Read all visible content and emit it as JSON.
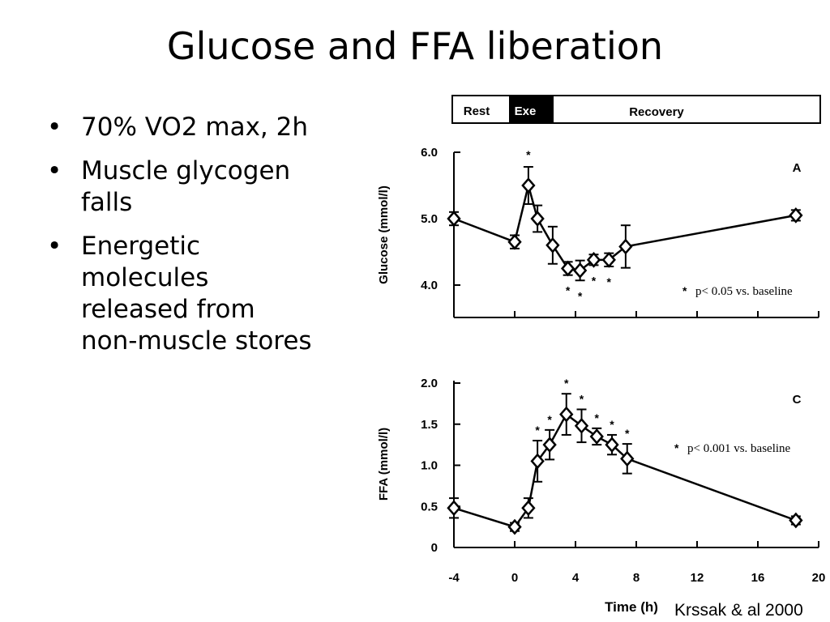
{
  "slide": {
    "title": "Glucose and FFA liberation",
    "bullets": [
      "70% VO2 max, 2h",
      "Muscle glycogen falls",
      "Energetic molecules released from non-muscle stores"
    ],
    "bullet_lines": [
      [
        "70% VO2 max, 2h"
      ],
      [
        "Muscle glycogen",
        "falls"
      ],
      [
        "Energetic",
        "molecules",
        "released from",
        "non-muscle stores"
      ]
    ],
    "citation": "Krssak & al 2000"
  },
  "phase_bar": {
    "rest": "Rest",
    "exercise": "Exe",
    "recovery": "Recovery"
  },
  "chart_data": [
    {
      "type": "line",
      "panel_label": "A",
      "xlabel": "Time (h)",
      "xlim": [
        -4,
        20
      ],
      "xticks": [
        "-4",
        "0",
        "4",
        "8",
        "12",
        "16",
        "20"
      ],
      "ylabel": "Glucose (mmol/l)",
      "ylim": [
        3.6,
        6.2
      ],
      "yticks": [
        {
          "value": 4.0,
          "label": "4.0"
        },
        {
          "value": 5.0,
          "label": "5.0"
        },
        {
          "value": 6.0,
          "label": "6.0"
        }
      ],
      "annotation": "p< 0.05 vs. baseline",
      "series": [
        {
          "x": [
            -4,
            0,
            0.9,
            1.5,
            2.5,
            3.5,
            4.3,
            5.2,
            6.2,
            7.3,
            18.5
          ],
          "y": [
            5.0,
            4.65,
            5.5,
            5.0,
            4.6,
            4.25,
            4.22,
            4.38,
            4.38,
            4.58,
            5.05
          ],
          "err": [
            0.1,
            0.1,
            0.28,
            0.2,
            0.28,
            0.1,
            0.15,
            0.08,
            0.1,
            0.32,
            0.08
          ],
          "significant": [
            false,
            false,
            true,
            false,
            false,
            true,
            true,
            true,
            true,
            false,
            false
          ]
        }
      ]
    },
    {
      "type": "line",
      "panel_label": "C",
      "xlabel": "Time (h)",
      "xlim": [
        -4,
        20
      ],
      "xticks": [
        "-4",
        "0",
        "4",
        "8",
        "12",
        "16",
        "20"
      ],
      "ylabel": "FFA (mmol/l)",
      "ylim": [
        0,
        2.0
      ],
      "yticks": [
        {
          "value": 0,
          "label": "0"
        },
        {
          "value": 0.5,
          "label": "0.5"
        },
        {
          "value": 1.0,
          "label": "1.0"
        },
        {
          "value": 1.5,
          "label": "1.5"
        },
        {
          "value": 2.0,
          "label": "2.0"
        }
      ],
      "annotation": "p< 0.001 vs. baseline",
      "series": [
        {
          "x": [
            -4,
            0,
            0.9,
            1.5,
            2.3,
            3.4,
            4.4,
            5.4,
            6.4,
            7.4,
            18.5
          ],
          "y": [
            0.48,
            0.25,
            0.48,
            1.05,
            1.25,
            1.62,
            1.48,
            1.35,
            1.25,
            1.08,
            0.33
          ],
          "err": [
            0.12,
            0.05,
            0.12,
            0.25,
            0.18,
            0.25,
            0.2,
            0.1,
            0.12,
            0.18,
            0.05
          ],
          "significant": [
            false,
            false,
            false,
            true,
            true,
            true,
            true,
            true,
            true,
            true,
            false
          ]
        }
      ]
    }
  ]
}
